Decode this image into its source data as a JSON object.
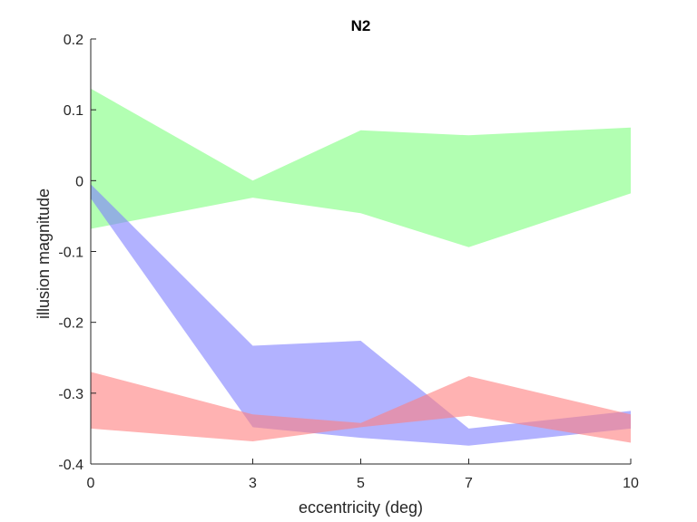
{
  "chart_data": {
    "type": "area",
    "title": "N2",
    "xlabel": "eccentricity (deg)",
    "ylabel": "illusion magnitude",
    "xlim": [
      0,
      10
    ],
    "ylim": [
      -0.4,
      0.2
    ],
    "xticks": [
      0,
      3,
      5,
      7,
      10
    ],
    "yticks": [
      -0.4,
      -0.3,
      -0.2,
      -0.1,
      0,
      0.1,
      0.2
    ],
    "ytick_labels": [
      "-0.4",
      "-0.3",
      "-0.2",
      "-0.1",
      "0",
      "0.1",
      "0.2"
    ],
    "grid": false,
    "legend": "none",
    "x": [
      0,
      3,
      5,
      7,
      10
    ],
    "series": [
      {
        "color": "#7fff7f",
        "upper": [
          0.13,
          0.0,
          0.071,
          0.064,
          0.075
        ],
        "lower": [
          -0.068,
          -0.024,
          -0.046,
          -0.094,
          -0.018
        ]
      },
      {
        "color": "#7f7fff",
        "upper": [
          -0.005,
          -0.233,
          -0.226,
          -0.35,
          -0.325
        ],
        "lower": [
          -0.025,
          -0.348,
          -0.363,
          -0.374,
          -0.35
        ]
      },
      {
        "color": "#ff7f7f",
        "upper": [
          -0.27,
          -0.33,
          -0.342,
          -0.276,
          -0.33
        ],
        "lower": [
          -0.35,
          -0.368,
          -0.348,
          -0.332,
          -0.37
        ]
      }
    ]
  }
}
